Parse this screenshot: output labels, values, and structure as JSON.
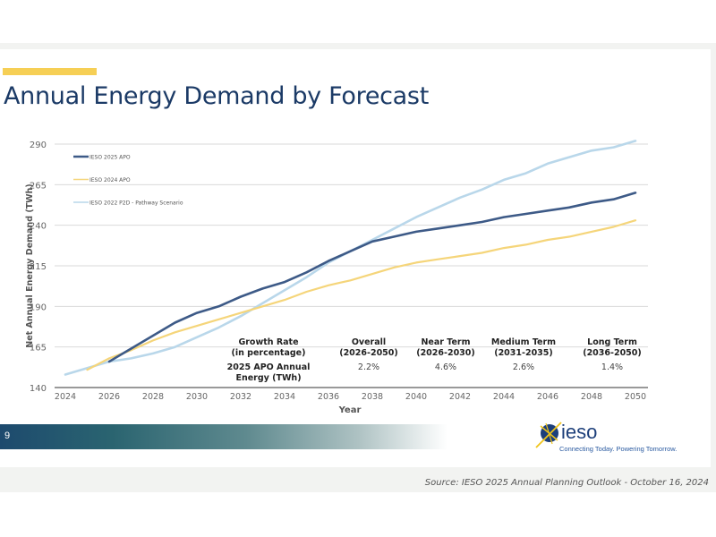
{
  "slide": {
    "title": "Annual Energy Demand by Forecast",
    "page_number": "9",
    "logo_name": "ieso",
    "logo_tagline": "Connecting Today. Powering Tomorrow.",
    "source": "Source: IESO 2025 Annual Planning Outlook - October 16, 2024",
    "accent_color": "#f6cf55",
    "title_color": "#1b3a66"
  },
  "chart_data": {
    "type": "line",
    "title": "Annual Energy Demand by Forecast",
    "xlabel": "Year",
    "ylabel": "Net Annual Energy Demand (TWh)",
    "xlim": [
      2024,
      2050
    ],
    "ylim": [
      140,
      290
    ],
    "xticks": [
      "2024",
      "2026",
      "2028",
      "2030",
      "2032",
      "2034",
      "2036",
      "2038",
      "2040",
      "2042",
      "2044",
      "2046",
      "2048",
      "2050"
    ],
    "yticks": [
      "140",
      "165",
      "190",
      "215",
      "240",
      "265",
      "290"
    ],
    "grid": true,
    "legend_position": "top-left",
    "series": [
      {
        "name": "IESO 2025 APO",
        "color": "#3d5a87",
        "x": [
          2026,
          2027,
          2028,
          2029,
          2030,
          2031,
          2032,
          2033,
          2034,
          2035,
          2036,
          2037,
          2038,
          2039,
          2040,
          2041,
          2042,
          2043,
          2044,
          2045,
          2046,
          2047,
          2048,
          2049,
          2050
        ],
        "values": [
          156,
          164,
          172,
          180,
          186,
          190,
          196,
          201,
          205,
          211,
          218,
          224,
          230,
          233,
          236,
          238,
          240,
          242,
          245,
          247,
          249,
          251,
          254,
          256,
          260
        ]
      },
      {
        "name": "IESO 2024 APO",
        "color": "#f5d57a",
        "x": [
          2025,
          2026,
          2027,
          2028,
          2029,
          2030,
          2031,
          2032,
          2033,
          2034,
          2035,
          2036,
          2037,
          2038,
          2039,
          2040,
          2041,
          2042,
          2043,
          2044,
          2045,
          2046,
          2047,
          2048,
          2049,
          2050
        ],
        "values": [
          151,
          158,
          163,
          169,
          174,
          178,
          182,
          186,
          190,
          194,
          199,
          203,
          206,
          210,
          214,
          217,
          219,
          221,
          223,
          226,
          228,
          231,
          233,
          236,
          239,
          243
        ]
      },
      {
        "name": "IESO 2022 P2D - Pathway Scenario",
        "color": "#b9d7ea",
        "x": [
          2024,
          2025,
          2026,
          2027,
          2028,
          2029,
          2030,
          2031,
          2032,
          2033,
          2034,
          2035,
          2036,
          2037,
          2038,
          2039,
          2040,
          2041,
          2042,
          2043,
          2044,
          2045,
          2046,
          2047,
          2048,
          2049,
          2050
        ],
        "values": [
          148,
          152,
          156,
          158,
          161,
          165,
          171,
          177,
          184,
          192,
          200,
          208,
          217,
          224,
          231,
          238,
          245,
          251,
          257,
          262,
          268,
          272,
          278,
          282,
          286,
          288,
          292
        ]
      }
    ],
    "growth_table": {
      "header": [
        "Growth Rate\n(in percentage)",
        "Overall\n(2026-2050)",
        "Near Term\n(2026-2030)",
        "Medium Term\n(2031-2035)",
        "Long Term\n(2036-2050)"
      ],
      "row_label": "2025 APO Annual\nEnergy (TWh)",
      "values": [
        "2.2%",
        "4.6%",
        "2.6%",
        "1.4%"
      ]
    }
  }
}
